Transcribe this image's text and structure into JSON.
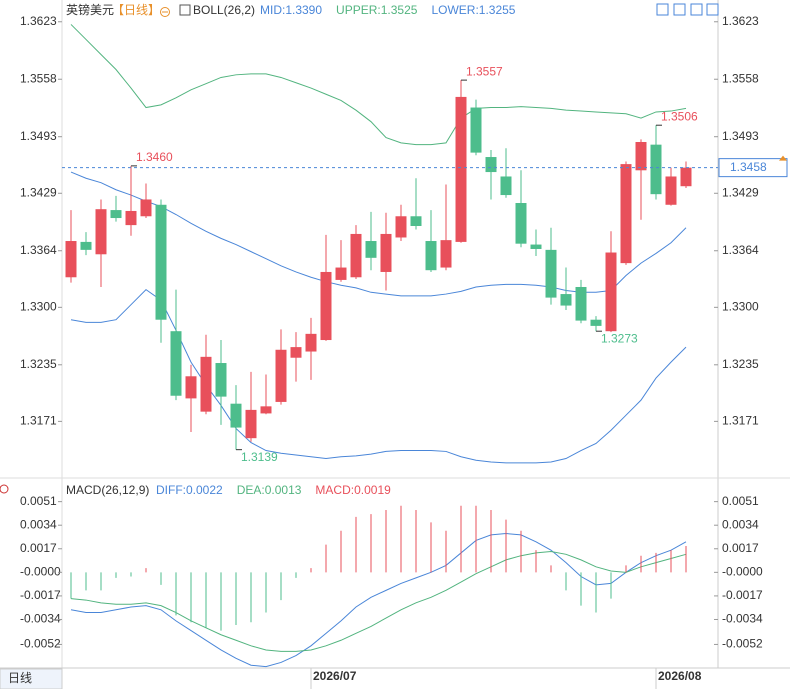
{
  "header": {
    "symbol": "英镑美元",
    "period": "【日线】"
  },
  "tab": "日线",
  "chart_data": [
    {
      "type": "candlestick",
      "title": "BOLL(26,2)",
      "open": [
        1.3334,
        1.3374,
        1.336,
        1.341,
        1.3393,
        1.3403,
        1.3416,
        1.3273,
        1.3197,
        1.3182,
        1.3237,
        1.3191,
        1.3152,
        1.318,
        1.3193,
        1.3243,
        1.325,
        1.3263,
        1.3331,
        1.3334,
        1.3375,
        1.334,
        1.3379,
        1.3403,
        1.3375,
        1.3345,
        1.3374,
        1.3526,
        1.347,
        1.3448,
        1.3418,
        1.3371,
        1.3365,
        1.3315,
        1.3323,
        1.3286,
        1.3273,
        1.335,
        1.3455,
        1.3484,
        1.3416,
        1.3437
      ],
      "high": [
        1.341,
        1.3385,
        1.3422,
        1.3426,
        1.346,
        1.344,
        1.3422,
        1.332,
        1.3235,
        1.3269,
        1.3263,
        1.3212,
        1.3227,
        1.3224,
        1.3275,
        1.3272,
        1.3288,
        1.3382,
        1.3376,
        1.3393,
        1.3408,
        1.3407,
        1.3416,
        1.3446,
        1.341,
        1.3439,
        1.3557,
        1.3535,
        1.3478,
        1.348,
        1.3455,
        1.3388,
        1.339,
        1.3345,
        1.3331,
        1.329,
        1.3386,
        1.3465,
        1.349,
        1.3506,
        1.3458,
        1.3465
      ],
      "low": [
        1.3328,
        1.3359,
        1.3323,
        1.3397,
        1.3381,
        1.3401,
        1.326,
        1.3195,
        1.3159,
        1.3179,
        1.3167,
        1.3139,
        1.3148,
        1.3179,
        1.319,
        1.3216,
        1.3218,
        1.3262,
        1.3329,
        1.3332,
        1.3342,
        1.3319,
        1.3375,
        1.3388,
        1.334,
        1.3342,
        1.3373,
        1.3472,
        1.3422,
        1.3424,
        1.3368,
        1.3358,
        1.3303,
        1.3297,
        1.3282,
        1.3273,
        1.3272,
        1.3348,
        1.3399,
        1.3422,
        1.3415,
        1.3435
      ],
      "close": [
        1.3375,
        1.3365,
        1.3411,
        1.3401,
        1.3409,
        1.3422,
        1.3286,
        1.32,
        1.3222,
        1.3244,
        1.3199,
        1.3164,
        1.3184,
        1.3188,
        1.3252,
        1.3255,
        1.327,
        1.334,
        1.3345,
        1.3383,
        1.3356,
        1.3383,
        1.3403,
        1.3392,
        1.3342,
        1.3376,
        1.3538,
        1.3475,
        1.3453,
        1.3427,
        1.3372,
        1.3366,
        1.3311,
        1.3302,
        1.3285,
        1.3279,
        1.3362,
        1.3462,
        1.3487,
        1.3428,
        1.3448,
        1.3458
      ],
      "up_color": "#e8505b",
      "down_color": "#4dbd8c",
      "series": [
        {
          "name": "MID:1.3390",
          "color": "#4a86d8",
          "values": [
            1.3453,
            1.3446,
            1.3441,
            1.3433,
            1.3427,
            1.342,
            1.3414,
            1.3405,
            1.3395,
            1.3386,
            1.3378,
            1.3371,
            1.3363,
            1.3355,
            1.3347,
            1.334,
            1.3334,
            1.3329,
            1.3325,
            1.3322,
            1.3317,
            1.3315,
            1.3313,
            1.3313,
            1.3313,
            1.3315,
            1.3318,
            1.3323,
            1.3325,
            1.3326,
            1.3326,
            1.3325,
            1.3323,
            1.3319,
            1.3317,
            1.3317,
            1.3319,
            1.3336,
            1.335,
            1.3361,
            1.3373,
            1.339
          ]
        },
        {
          "name": "UPPER:1.3525",
          "color": "#52b47f",
          "values": [
            1.362,
            1.3603,
            1.3586,
            1.3569,
            1.3548,
            1.3526,
            1.3529,
            1.3537,
            1.3546,
            1.3553,
            1.356,
            1.3563,
            1.3564,
            1.3564,
            1.356,
            1.3554,
            1.3548,
            1.3541,
            1.3534,
            1.3523,
            1.351,
            1.3492,
            1.3486,
            1.3484,
            1.3484,
            1.3486,
            1.3514,
            1.3525,
            1.3526,
            1.3526,
            1.3527,
            1.3526,
            1.3525,
            1.3523,
            1.3522,
            1.3521,
            1.352,
            1.3519,
            1.3514,
            1.3521,
            1.3522,
            1.3525
          ]
        },
        {
          "name": "LOWER:1.3255",
          "color": "#4a86d8",
          "values": [
            1.3286,
            1.3283,
            1.3283,
            1.3286,
            1.3303,
            1.332,
            1.3308,
            1.3274,
            1.3238,
            1.3212,
            1.3189,
            1.3163,
            1.3147,
            1.3138,
            1.3135,
            1.3133,
            1.3131,
            1.3129,
            1.3131,
            1.3132,
            1.3134,
            1.3137,
            1.3138,
            1.3138,
            1.3138,
            1.3137,
            1.3131,
            1.3127,
            1.3125,
            1.3124,
            1.3124,
            1.3124,
            1.3125,
            1.3129,
            1.3138,
            1.3146,
            1.3161,
            1.3178,
            1.3195,
            1.322,
            1.3238,
            1.3255
          ]
        }
      ],
      "annotations": [
        {
          "label": "1.3460",
          "value": 1.346
        },
        {
          "label": "1.3557",
          "value": 1.3557
        },
        {
          "label": "1.3506",
          "value": 1.3506
        },
        {
          "label": "1.3273",
          "value": 1.3273
        },
        {
          "label": "1.3139",
          "value": 1.3139
        }
      ],
      "ylim": [
        1.3116,
        1.3625
      ],
      "yticks": [
        1.3623,
        1.3558,
        1.3493,
        1.3429,
        1.3364,
        {
          "value": 1.33,
          "label": "1.3300"
        },
        1.3235,
        1.3171
      ],
      "grid": false
    },
    {
      "type": "macd",
      "title": "MACD(26,12,9)",
      "categories": [
        null,
        null,
        null,
        null,
        null,
        null,
        null,
        null,
        null,
        null,
        null,
        null,
        null,
        null,
        null,
        null,
        "2026/07",
        null,
        null,
        null,
        null,
        null,
        null,
        null,
        null,
        null,
        null,
        null,
        null,
        null,
        null,
        null,
        null,
        null,
        null,
        null,
        null,
        null,
        null,
        "2026/08",
        null,
        null
      ],
      "series": [
        {
          "name": "DIFF:0.0022",
          "color": "#4a86d8",
          "style": "line",
          "values": [
            -0.0027,
            -0.0029,
            -0.0029,
            -0.0027,
            -0.0025,
            -0.0024,
            -0.0027,
            -0.0035,
            -0.0042,
            -0.0049,
            -0.0056,
            -0.0062,
            -0.0067,
            -0.0068,
            -0.0065,
            -0.006,
            -0.0053,
            -0.0044,
            -0.0035,
            -0.0025,
            -0.0018,
            -0.0013,
            -0.0008,
            -0.0004,
            0,
            0.0005,
            0.0014,
            0.0023,
            0.0027,
            0.0028,
            0.0027,
            0.0022,
            0.0016,
            0.0007,
            -0.0003,
            -0.0009,
            -0.0008,
            0,
            0.0007,
            0.0012,
            0.0016,
            0.0022
          ]
        },
        {
          "name": "DEA:0.0013",
          "color": "#52b47f",
          "style": "line",
          "values": [
            -0.0019,
            -0.002,
            -0.0022,
            -0.0023,
            -0.0023,
            -0.0022,
            -0.0024,
            -0.0029,
            -0.0035,
            -0.004,
            -0.0045,
            -0.0049,
            -0.0053,
            -0.0056,
            -0.0057,
            -0.0057,
            -0.0056,
            -0.0053,
            -0.0049,
            -0.0044,
            -0.0039,
            -0.0033,
            -0.0027,
            -0.0022,
            -0.0018,
            -0.0013,
            -0.0007,
            -0.0001,
            0.0004,
            0.0009,
            0.0012,
            0.0014,
            0.0015,
            0.0013,
            0.0009,
            0.0004,
            0.0001,
            0,
            0.0004,
            0.0007,
            0.001,
            0.0013
          ]
        },
        {
          "name": "MACD:0.0019",
          "color": "#e8505b",
          "negative_color": "#4dbd8c",
          "style": "bar",
          "values": [
            -0.0019,
            -0.0013,
            -0.0013,
            -0.0004,
            -0.0003,
            0.0003,
            -0.0009,
            -0.0031,
            -0.0036,
            -0.004,
            -0.0042,
            -0.0038,
            -0.0036,
            -0.0029,
            -0.002,
            -0.0004,
            0.0003,
            0.002,
            0.003,
            0.004,
            0.0042,
            0.0045,
            0.0048,
            0.0045,
            0.0036,
            0.003,
            0.0048,
            0.0048,
            0.0045,
            0.0038,
            0.003,
            0.0016,
            0.0005,
            -0.0013,
            -0.0024,
            -0.0029,
            -0.0019,
            0.0005,
            0.0012,
            0.0014,
            0.0016,
            0.0019
          ]
        }
      ],
      "ylim": [
        -0.0069,
        0.0063
      ],
      "yticks": [
        0.0051,
        0.0034,
        0.0017,
        {
          "value": 0,
          "label": "-0.0000"
        },
        -0.0017,
        -0.0034,
        -0.0052
      ],
      "grid": false
    }
  ]
}
